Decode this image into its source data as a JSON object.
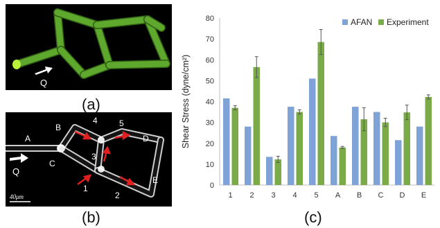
{
  "panels": {
    "a_label": "(a)",
    "b_label": "(b)",
    "c_label": "(c)"
  },
  "panel_a": {
    "flow_label": "Q",
    "tube_color": "#5ea82d",
    "inlet_color": "#b9ef3b"
  },
  "panel_b": {
    "flow_label": "Q",
    "scale_label": "40μm",
    "node_labels": [
      "A",
      "B",
      "C",
      "1",
      "2",
      "3",
      "4",
      "5",
      "D",
      "E"
    ]
  },
  "chart_data": {
    "type": "bar",
    "categories": [
      "1",
      "2",
      "3",
      "4",
      "5",
      "A",
      "B",
      "C",
      "D",
      "E"
    ],
    "series": [
      {
        "name": "AFAN",
        "color": "#7fa3d6",
        "values": [
          41.5,
          28,
          13.5,
          37.5,
          51,
          23.5,
          37.5,
          35,
          21.5,
          28
        ]
      },
      {
        "name": "Experiment",
        "color": "#7aab48",
        "values": [
          37,
          56.5,
          12.3,
          35,
          68.5,
          18,
          31.5,
          30,
          34.8,
          42.2
        ],
        "errors": [
          1,
          5,
          1.5,
          1,
          6,
          0.5,
          5.5,
          2,
          3.5,
          1
        ]
      }
    ],
    "ylabel": "Shear Stress (dyne/cm²)",
    "ylim": [
      0,
      80
    ],
    "yticks": [
      0,
      10,
      20,
      30,
      40,
      50,
      60,
      70,
      80
    ],
    "legend_position": "top-right"
  }
}
